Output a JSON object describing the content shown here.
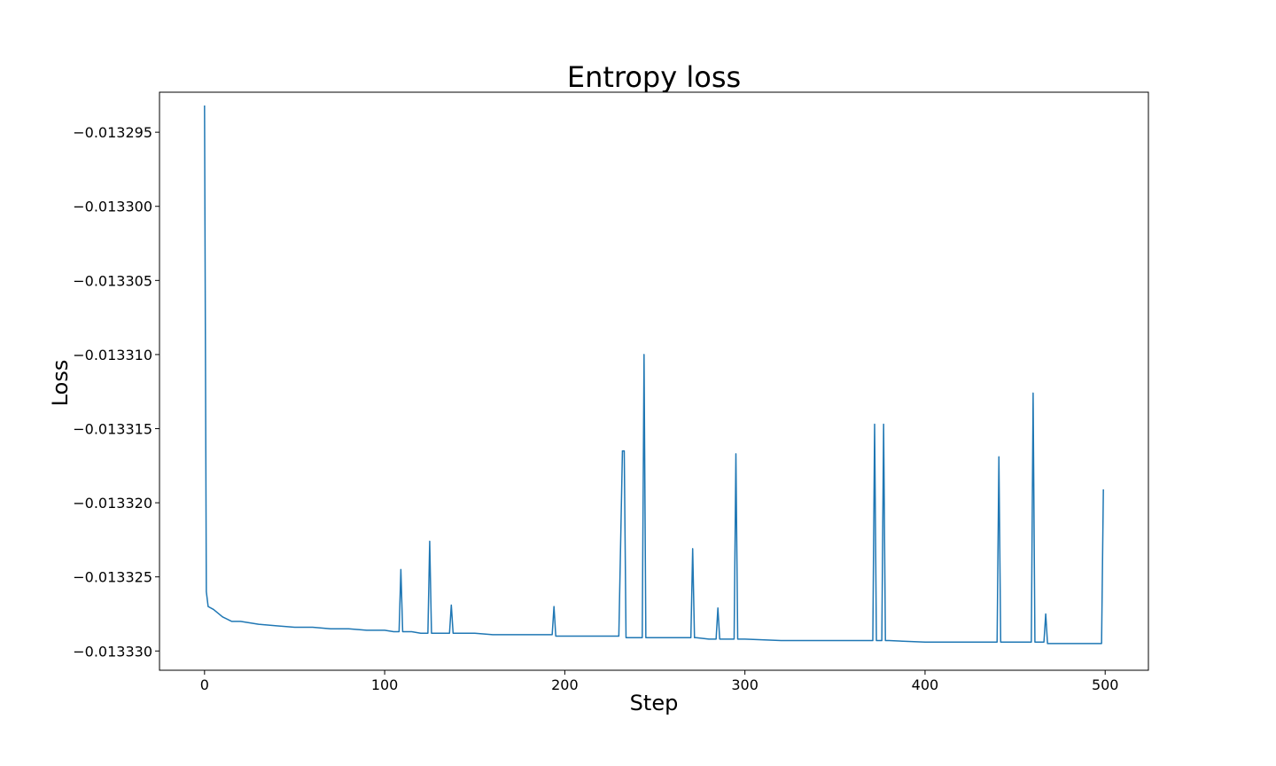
{
  "chart_data": {
    "type": "line",
    "title": "Entropy loss",
    "xlabel": "Step",
    "ylabel": "Loss",
    "xlim": [
      -25,
      524
    ],
    "ylim": [
      -0.0133313,
      -0.0132923
    ],
    "xticks": [
      0,
      100,
      200,
      300,
      400,
      500
    ],
    "xtick_labels": [
      "0",
      "100",
      "200",
      "300",
      "400",
      "500"
    ],
    "yticks": [
      -0.013295,
      -0.0133,
      -0.013305,
      -0.01331,
      -0.013315,
      -0.01332,
      -0.013325,
      -0.01333
    ],
    "ytick_labels": [
      "−0.013295",
      "−0.013300",
      "−0.013305",
      "−0.013310",
      "−0.013315",
      "−0.013320",
      "−0.013325",
      "−0.013330"
    ],
    "grid": false,
    "series": [
      {
        "color": "#1f77b4",
        "x": [
          0,
          1,
          2,
          5,
          10,
          15,
          20,
          30,
          40,
          50,
          60,
          70,
          80,
          90,
          100,
          105,
          108,
          109,
          110,
          115,
          120,
          124,
          125,
          126,
          130,
          135,
          136,
          137,
          138,
          140,
          150,
          160,
          170,
          180,
          190,
          193,
          194,
          195,
          200,
          210,
          220,
          230,
          232,
          233,
          234,
          235,
          240,
          243,
          244,
          245,
          250,
          260,
          270,
          271,
          272,
          273,
          280,
          284,
          285,
          286,
          290,
          294,
          295,
          296,
          300,
          320,
          340,
          360,
          371,
          372,
          373,
          376,
          377,
          378,
          380,
          400,
          420,
          430,
          440,
          441,
          442,
          450,
          459,
          460,
          461,
          466,
          467,
          468,
          470,
          480,
          490,
          498,
          499
        ],
        "y": [
          -0.0132932,
          -0.013326,
          -0.013327,
          -0.0133272,
          -0.0133277,
          -0.013328,
          -0.013328,
          -0.0133282,
          -0.0133283,
          -0.0133284,
          -0.0133284,
          -0.0133285,
          -0.0133285,
          -0.0133286,
          -0.0133286,
          -0.0133287,
          -0.0133287,
          -0.0133245,
          -0.0133287,
          -0.0133287,
          -0.0133288,
          -0.0133288,
          -0.0133226,
          -0.0133288,
          -0.0133288,
          -0.0133288,
          -0.0133288,
          -0.0133269,
          -0.0133288,
          -0.0133288,
          -0.0133288,
          -0.0133289,
          -0.0133289,
          -0.0133289,
          -0.0133289,
          -0.0133289,
          -0.013327,
          -0.013329,
          -0.013329,
          -0.013329,
          -0.013329,
          -0.013329,
          -0.0133165,
          -0.0133165,
          -0.0133291,
          -0.0133291,
          -0.0133291,
          -0.0133291,
          -0.01331,
          -0.0133291,
          -0.0133291,
          -0.0133291,
          -0.0133291,
          -0.0133231,
          -0.0133291,
          -0.0133291,
          -0.0133292,
          -0.0133292,
          -0.0133271,
          -0.0133292,
          -0.0133292,
          -0.0133292,
          -0.0133167,
          -0.0133292,
          -0.0133292,
          -0.0133293,
          -0.0133293,
          -0.0133293,
          -0.0133293,
          -0.0133147,
          -0.0133293,
          -0.0133293,
          -0.0133147,
          -0.0133293,
          -0.0133293,
          -0.0133294,
          -0.0133294,
          -0.0133294,
          -0.0133294,
          -0.0133169,
          -0.0133294,
          -0.0133294,
          -0.0133294,
          -0.0133126,
          -0.0133294,
          -0.0133294,
          -0.0133275,
          -0.0133295,
          -0.0133295,
          -0.0133295,
          -0.0133295,
          -0.0133295,
          -0.0133191
        ]
      }
    ]
  }
}
